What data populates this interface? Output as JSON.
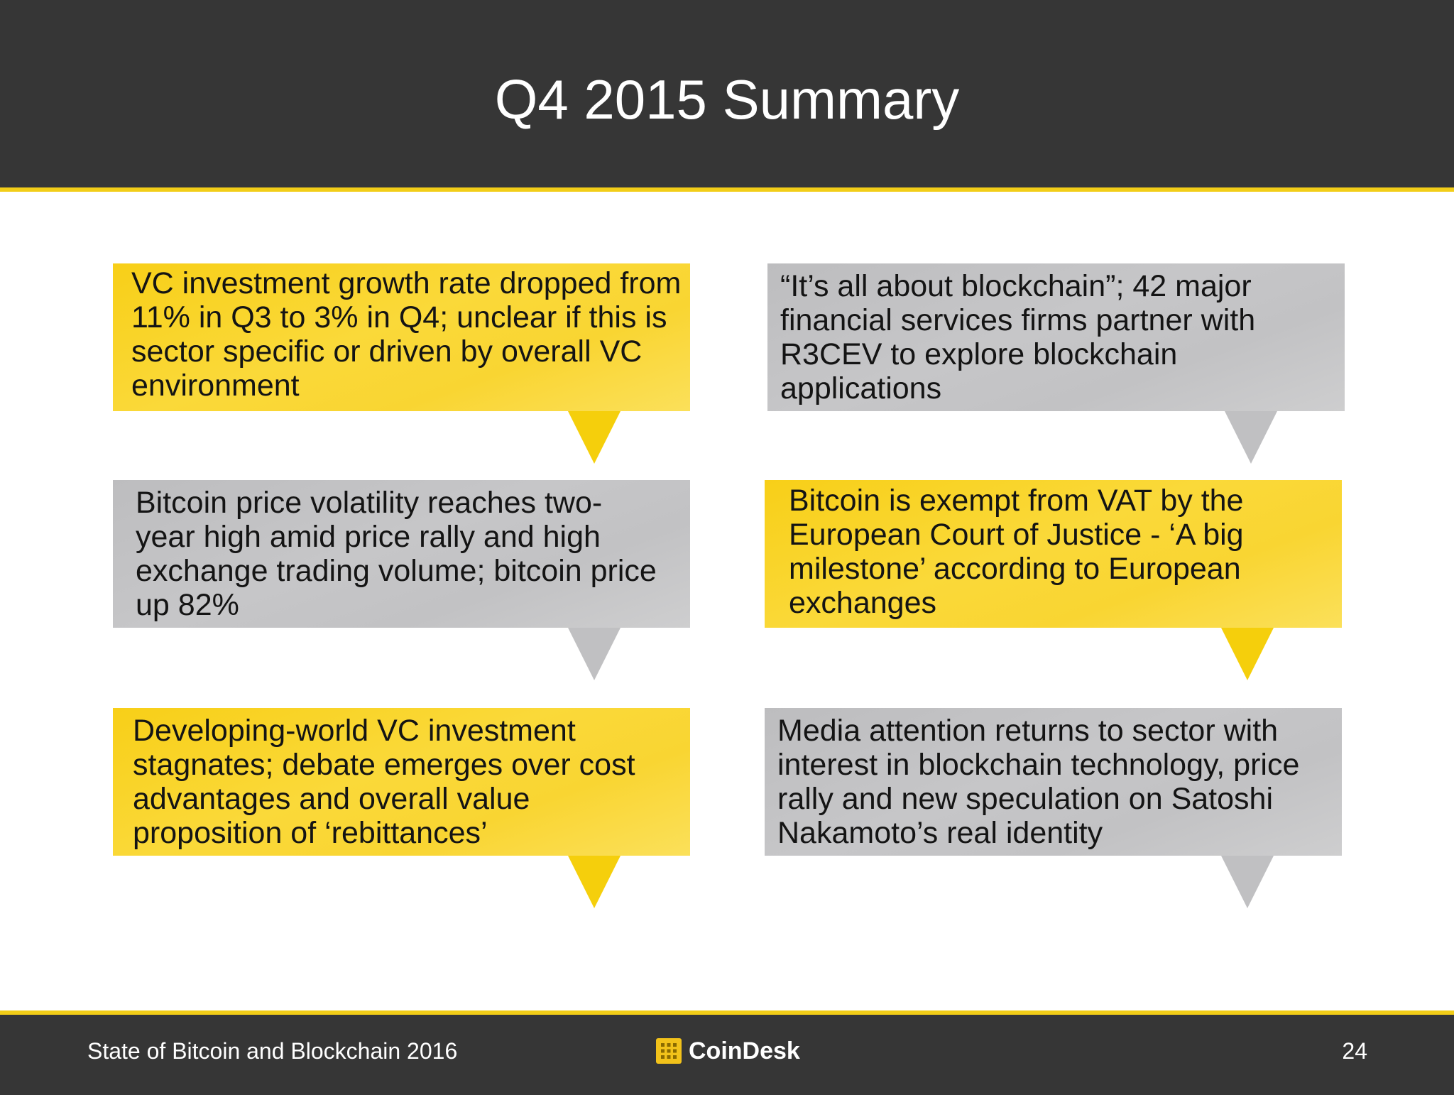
{
  "slide": {
    "title": "Q4 2015 Summary"
  },
  "callouts": [
    {
      "text": "VC investment growth rate dropped from 11% in Q3 to 3% in Q4; unclear if this is sector specific or driven by overall VC environment",
      "color": "#f9d42a"
    },
    {
      "text": "“It’s all about blockchain”; 42 major financial services firms partner with R3CEV to explore blockchain applications",
      "color": "#c4c4c6"
    },
    {
      "text": "Bitcoin price volatility reaches two-year high amid price rally and high exchange trading volume; bitcoin price up 82%",
      "color": "#c4c4c6"
    },
    {
      "text": "Bitcoin is exempt from VAT by the European Court of Justice - ‘A big milestone’ according to European exchanges",
      "color": "#f9d42a"
    },
    {
      "text": "Developing-world VC investment stagnates; debate emerges over cost advantages and overall value proposition of ‘rebittances’",
      "color": "#f9d42a"
    },
    {
      "text": "Media attention returns to sector with interest in blockchain technology, price rally and new speculation on Satoshi Nakamoto’s real identity",
      "color": "#c4c4c6"
    }
  ],
  "footer": {
    "report_title": "State of Bitcoin and Blockchain 2016",
    "brand_name": "CoinDesk",
    "brand_icon": "coindesk-logo-icon",
    "page_number": "24"
  },
  "colors": {
    "header_bg": "#363636",
    "accent": "#f2cd18",
    "yellow": "#f9d42a",
    "gray": "#c4c4c6"
  }
}
